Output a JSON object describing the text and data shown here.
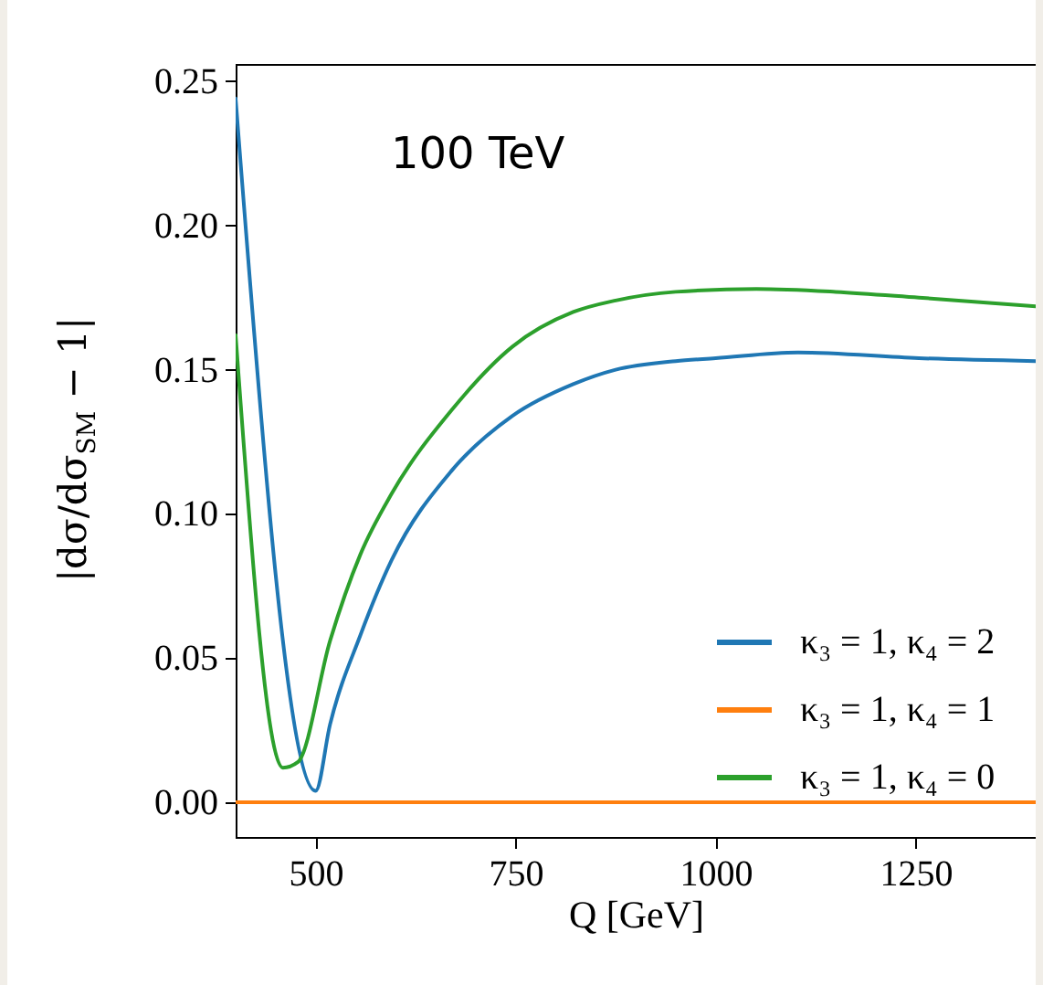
{
  "chart_data": {
    "type": "line",
    "xlabel": "Q [GeV]",
    "ylabel": "|dσ/dσ$_{SM}$ − 1|",
    "annotations": [
      "100 TeV"
    ],
    "xlim": [
      400,
      1400
    ],
    "xticks": [
      500,
      750,
      1000,
      1250
    ],
    "ylim": [
      -0.012,
      0.256
    ],
    "yticks": [
      {
        "value": 0,
        "label": "0.00"
      },
      {
        "value": 0.05,
        "label": "0.05"
      },
      {
        "value": 0.1,
        "label": "0.10"
      },
      {
        "value": 0.15,
        "label": "0.15"
      },
      {
        "value": 0.2,
        "label": "0.20"
      },
      {
        "value": 0.25,
        "label": "0.25"
      }
    ],
    "grid": false,
    "legend": "bottom right",
    "marker": "none",
    "line_style": "solid",
    "series": [
      {
        "name": "κ₃ = 1, κ₄ = 2",
        "color": "#1f77b4",
        "x": [
          400,
          500,
          518,
          556,
          595,
          670,
          746,
          822,
          875,
          950,
          1000,
          1103,
          1254,
          1400
        ],
        "values": [
          0.244,
          0.004,
          0.027,
          0.058,
          0.084,
          0.115,
          0.134,
          0.145,
          0.15,
          0.153,
          0.154,
          0.156,
          0.154,
          0.153
        ]
      },
      {
        "name": "κ₃ = 1, κ₄ = 1",
        "color": "#ff7f0e",
        "x": [
          400,
          1400
        ],
        "values": [
          0,
          0
        ]
      },
      {
        "name": "κ₃ = 1, κ₄ = 0",
        "color": "#2ca02c",
        "x": [
          400,
          459,
          478,
          518,
          556,
          595,
          670,
          746,
          822,
          875,
          950,
          1051,
          1150,
          1254,
          1400
        ],
        "values": [
          0.162,
          0.012,
          0.014,
          0.056,
          0.086,
          0.107,
          0.136,
          0.158,
          0.17,
          0.174,
          0.177,
          0.178,
          0.177,
          0.175,
          0.172
        ]
      }
    ]
  }
}
